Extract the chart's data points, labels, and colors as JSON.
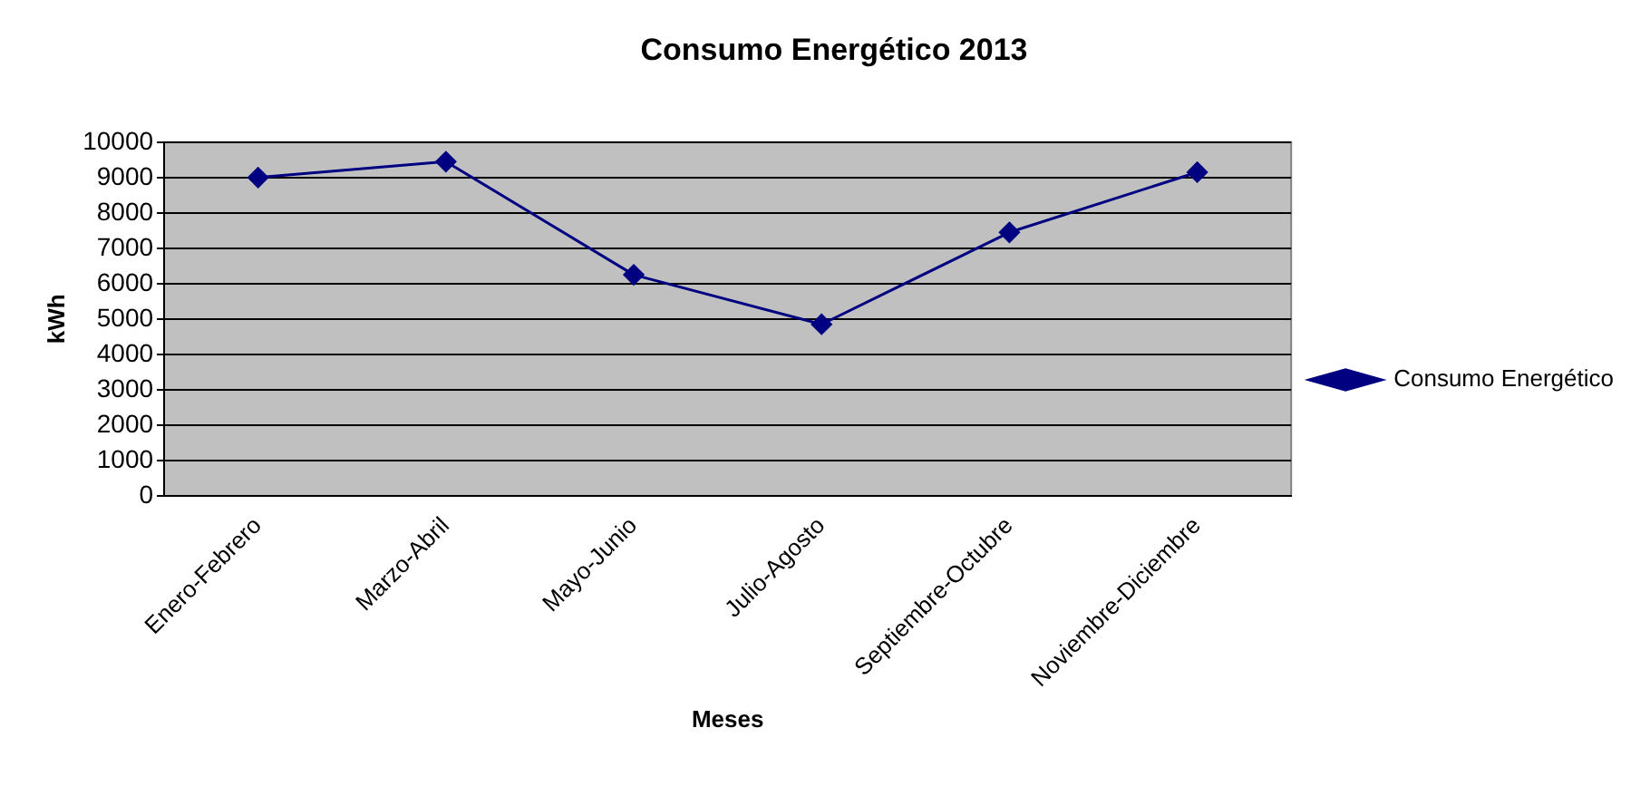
{
  "chart_data": {
    "type": "line",
    "title": "Consumo Energético 2013",
    "xlabel": "Meses",
    "ylabel": "kWh",
    "categories": [
      "Enero-Febrero",
      "Marzo-Abril",
      "Mayo-Junio",
      "Julio-Agosto",
      "Septiembre-Octubre",
      "Noviembre-Diciembre"
    ],
    "series": [
      {
        "name": "Consumo Energético",
        "color": "#000080",
        "values": [
          9000,
          9450,
          6250,
          4850,
          7450,
          9150
        ]
      }
    ],
    "ylim": [
      0,
      10000
    ],
    "yticks": [
      0,
      1000,
      2000,
      3000,
      4000,
      5000,
      6000,
      7000,
      8000,
      9000,
      10000
    ],
    "grid": "y",
    "legend": "right",
    "marker": "diamond",
    "line_style": "solid"
  }
}
